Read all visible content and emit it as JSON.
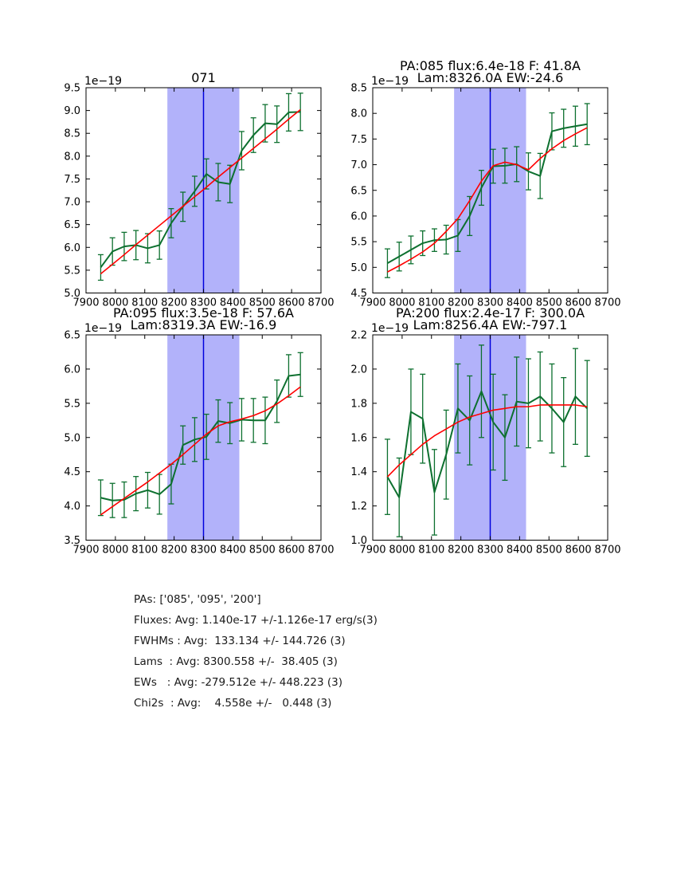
{
  "figure": {
    "background": "#ffffff",
    "colors": {
      "data_line": "#0d702f",
      "error_bar": "#0d702f",
      "fit_line": "#ff0000",
      "center_line": "#0000dd",
      "band_fill": "#b2b2fa",
      "axis": "#000000",
      "text": "#000000"
    }
  },
  "chart_data": [
    {
      "type": "line",
      "position": "top-left",
      "title_line1": "",
      "title_line2": "071",
      "offset_text": "1e−19",
      "xlim": [
        7900,
        8700
      ],
      "ylim": [
        5.0,
        9.5
      ],
      "xticks": [
        7900,
        8000,
        8100,
        8200,
        8300,
        8400,
        8500,
        8600,
        8700
      ],
      "yticks": [
        5.0,
        5.5,
        6.0,
        6.5,
        7.0,
        7.5,
        8.0,
        8.5,
        9.0,
        9.5
      ],
      "band_x": [
        8177,
        8422
      ],
      "vline_x": 8300,
      "grid": false,
      "x": [
        7950,
        7990,
        8030,
        8070,
        8110,
        8150,
        8190,
        8230,
        8270,
        8310,
        8350,
        8390,
        8430,
        8470,
        8510,
        8550,
        8590,
        8630
      ],
      "series": [
        {
          "name": "spectrum",
          "role": "data",
          "values": [
            5.56,
            5.91,
            6.02,
            6.05,
            5.98,
            6.05,
            6.53,
            6.89,
            7.23,
            7.61,
            7.43,
            7.39,
            8.12,
            8.46,
            8.72,
            8.7,
            8.96,
            8.97
          ],
          "errors": [
            0.28,
            0.3,
            0.31,
            0.32,
            0.32,
            0.31,
            0.32,
            0.32,
            0.33,
            0.33,
            0.41,
            0.41,
            0.42,
            0.38,
            0.41,
            0.4,
            0.41,
            0.41
          ]
        },
        {
          "name": "fit",
          "role": "fit",
          "values": [
            5.42,
            5.63,
            5.84,
            6.06,
            6.27,
            6.48,
            6.69,
            6.9,
            7.11,
            7.32,
            7.54,
            7.75,
            7.96,
            8.17,
            8.38,
            8.59,
            8.81,
            9.02
          ]
        }
      ]
    },
    {
      "type": "line",
      "position": "top-right",
      "title_line1": "PA:085 flux:6.4e-18 F: 41.8A",
      "title_line2": "Lam:8326.0A EW:-24.6",
      "offset_text": "1e−19",
      "xlim": [
        7900,
        8700
      ],
      "ylim": [
        4.5,
        8.5
      ],
      "xticks": [
        7900,
        8000,
        8100,
        8200,
        8300,
        8400,
        8500,
        8600,
        8700
      ],
      "yticks": [
        4.5,
        5.0,
        5.5,
        6.0,
        6.5,
        7.0,
        7.5,
        8.0,
        8.5
      ],
      "band_x": [
        8177,
        8422
      ],
      "vline_x": 8300,
      "grid": false,
      "x": [
        7950,
        7990,
        8030,
        8070,
        8110,
        8150,
        8190,
        8230,
        8270,
        8310,
        8350,
        8390,
        8430,
        8470,
        8510,
        8550,
        8590,
        8630
      ],
      "series": [
        {
          "name": "spectrum",
          "role": "data",
          "values": [
            5.08,
            5.21,
            5.34,
            5.47,
            5.53,
            5.54,
            5.62,
            6.0,
            6.55,
            6.97,
            6.98,
            7.01,
            6.87,
            6.78,
            7.65,
            7.71,
            7.75,
            7.79
          ],
          "errors": [
            0.28,
            0.28,
            0.27,
            0.24,
            0.22,
            0.28,
            0.31,
            0.38,
            0.34,
            0.33,
            0.34,
            0.34,
            0.36,
            0.44,
            0.36,
            0.37,
            0.39,
            0.4
          ]
        },
        {
          "name": "fit",
          "role": "fit",
          "values": [
            4.91,
            5.03,
            5.16,
            5.3,
            5.47,
            5.7,
            5.95,
            6.3,
            6.68,
            6.98,
            7.05,
            7.0,
            6.9,
            7.12,
            7.31,
            7.47,
            7.6,
            7.72
          ]
        }
      ]
    },
    {
      "type": "line",
      "position": "bottom-left",
      "title_line1": "PA:095 flux:3.5e-18 F: 57.6A",
      "title_line2": "Lam:8319.3A EW:-16.9",
      "offset_text": "1e−19",
      "xlim": [
        7900,
        8700
      ],
      "ylim": [
        3.5,
        6.5
      ],
      "xticks": [
        7900,
        8000,
        8100,
        8200,
        8300,
        8400,
        8500,
        8600,
        8700
      ],
      "yticks": [
        3.5,
        4.0,
        4.5,
        5.0,
        5.5,
        6.0,
        6.5
      ],
      "band_x": [
        8177,
        8422
      ],
      "vline_x": 8300,
      "grid": false,
      "x": [
        7950,
        7990,
        8030,
        8070,
        8110,
        8150,
        8190,
        8230,
        8270,
        8310,
        8350,
        8390,
        8430,
        8470,
        8510,
        8550,
        8590,
        8630
      ],
      "series": [
        {
          "name": "spectrum",
          "role": "data",
          "values": [
            4.12,
            4.08,
            4.09,
            4.18,
            4.23,
            4.17,
            4.32,
            4.89,
            4.97,
            5.01,
            5.24,
            5.21,
            5.26,
            5.25,
            5.25,
            5.53,
            5.9,
            5.92
          ],
          "errors": [
            0.26,
            0.25,
            0.26,
            0.25,
            0.26,
            0.29,
            0.29,
            0.28,
            0.32,
            0.33,
            0.31,
            0.3,
            0.31,
            0.32,
            0.34,
            0.31,
            0.31,
            0.32
          ]
        },
        {
          "name": "fit",
          "role": "fit",
          "values": [
            3.87,
            3.99,
            4.11,
            4.23,
            4.35,
            4.48,
            4.61,
            4.75,
            4.9,
            5.05,
            5.17,
            5.23,
            5.27,
            5.32,
            5.39,
            5.49,
            5.61,
            5.74
          ]
        }
      ]
    },
    {
      "type": "line",
      "position": "bottom-right",
      "title_line1": "PA:200 flux:2.4e-17 F: 300.0A",
      "title_line2": "Lam:8256.4A EW:-797.1",
      "offset_text": "1e−19",
      "xlim": [
        7900,
        8700
      ],
      "ylim": [
        1.0,
        2.2
      ],
      "xticks": [
        7900,
        8000,
        8100,
        8200,
        8300,
        8400,
        8500,
        8600,
        8700
      ],
      "yticks": [
        1.0,
        1.2,
        1.4,
        1.6,
        1.8,
        2.0,
        2.2
      ],
      "band_x": [
        8177,
        8422
      ],
      "vline_x": 8300,
      "grid": false,
      "x": [
        7950,
        7990,
        8030,
        8070,
        8110,
        8150,
        8190,
        8230,
        8270,
        8310,
        8350,
        8390,
        8430,
        8470,
        8510,
        8550,
        8590,
        8630
      ],
      "series": [
        {
          "name": "spectrum",
          "role": "data",
          "values": [
            1.37,
            1.25,
            1.75,
            1.71,
            1.28,
            1.5,
            1.77,
            1.7,
            1.87,
            1.69,
            1.6,
            1.81,
            1.8,
            1.84,
            1.77,
            1.69,
            1.84,
            1.77
          ],
          "errors": [
            0.22,
            0.23,
            0.25,
            0.26,
            0.25,
            0.26,
            0.26,
            0.26,
            0.27,
            0.28,
            0.25,
            0.26,
            0.26,
            0.26,
            0.26,
            0.26,
            0.28,
            0.28
          ]
        },
        {
          "name": "fit",
          "role": "fit",
          "values": [
            1.37,
            1.44,
            1.5,
            1.56,
            1.61,
            1.65,
            1.69,
            1.72,
            1.74,
            1.76,
            1.77,
            1.78,
            1.78,
            1.79,
            1.79,
            1.79,
            1.79,
            1.78
          ]
        }
      ]
    }
  ],
  "stats_block": {
    "lines": [
      "PAs: ['085', '095', '200']",
      "Fluxes: Avg: 1.140e-17 +/-1.126e-17 erg/s(3)",
      "FWHMs : Avg:  133.134 +/- 144.726 (3)",
      "Lams  : Avg: 8300.558 +/-  38.405 (3)",
      "EWs   : Avg: -279.512e +/- 448.223 (3)",
      "Chi2s  : Avg:    4.558e +/-   0.448 (3)"
    ]
  }
}
